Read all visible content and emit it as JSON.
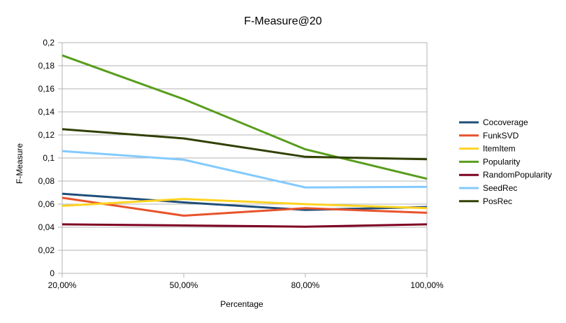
{
  "chart_data": {
    "type": "line",
    "title": "F-Measure@20",
    "xlabel": "Percentage",
    "ylabel": "F-Measure",
    "categories": [
      "20,00%",
      "50,00%",
      "80,00%",
      "100,00%"
    ],
    "ylim": [
      0,
      0.2
    ],
    "y_ticks": [
      "0",
      "0,02",
      "0,04",
      "0,06",
      "0,08",
      "0,1",
      "0,12",
      "0,14",
      "0,16",
      "0,18",
      "0,2"
    ],
    "grid": "horizontal",
    "legend_position": "right",
    "series": [
      {
        "name": "Cocoverage",
        "color": "#1f4e79",
        "values": [
          0.069,
          0.0615,
          0.055,
          0.0575
        ]
      },
      {
        "name": "FunkSVD",
        "color": "#e8532b",
        "values": [
          0.0655,
          0.05,
          0.0565,
          0.0525
        ]
      },
      {
        "name": "ItemItem",
        "color": "#ffd320",
        "values": [
          0.0585,
          0.0645,
          0.06,
          0.0565
        ]
      },
      {
        "name": "Popularity",
        "color": "#579d1c",
        "values": [
          0.189,
          0.151,
          0.1075,
          0.082
        ]
      },
      {
        "name": "RandomPopularity",
        "color": "#7e0021",
        "values": [
          0.0425,
          0.0415,
          0.0405,
          0.0425
        ]
      },
      {
        "name": "SeedRec",
        "color": "#83caff",
        "values": [
          0.106,
          0.0985,
          0.0745,
          0.075
        ]
      },
      {
        "name": "PosRec",
        "color": "#314004",
        "values": [
          0.125,
          0.117,
          0.101,
          0.099
        ]
      }
    ]
  }
}
